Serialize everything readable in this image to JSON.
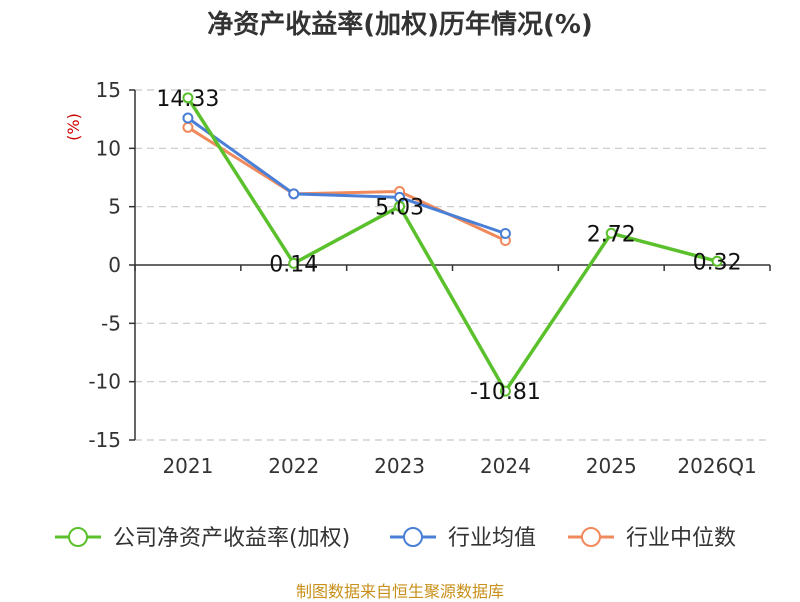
{
  "chart_data": {
    "type": "line",
    "title": "净资产收益率(加权)历年情况(%)",
    "ylabel": "(%)",
    "categories": [
      "2021",
      "2022",
      "2023",
      "2024",
      "2025",
      "2026Q1"
    ],
    "ylim": [
      -15,
      15
    ],
    "yticks": [
      15,
      10,
      5,
      0,
      -5,
      -10,
      -15
    ],
    "grid": true,
    "legend_position": "bottom",
    "series": [
      {
        "name": "公司净资产收益率(加权)",
        "color": "#5ac12d",
        "values": [
          14.33,
          0.14,
          5.03,
          -10.81,
          2.72,
          0.32
        ],
        "labels": [
          "14.33",
          "0.14",
          "5.03",
          "-10.81",
          "2.72",
          "0.32"
        ]
      },
      {
        "name": "行业均值",
        "color": "#4a7fd6",
        "values": [
          12.6,
          6.1,
          5.8,
          2.7,
          null,
          null
        ]
      },
      {
        "name": "行业中位数",
        "color": "#f08a5d",
        "values": [
          11.8,
          6.1,
          6.3,
          2.1,
          null,
          null
        ]
      }
    ]
  },
  "footer": "制图数据来自恒生聚源数据库"
}
